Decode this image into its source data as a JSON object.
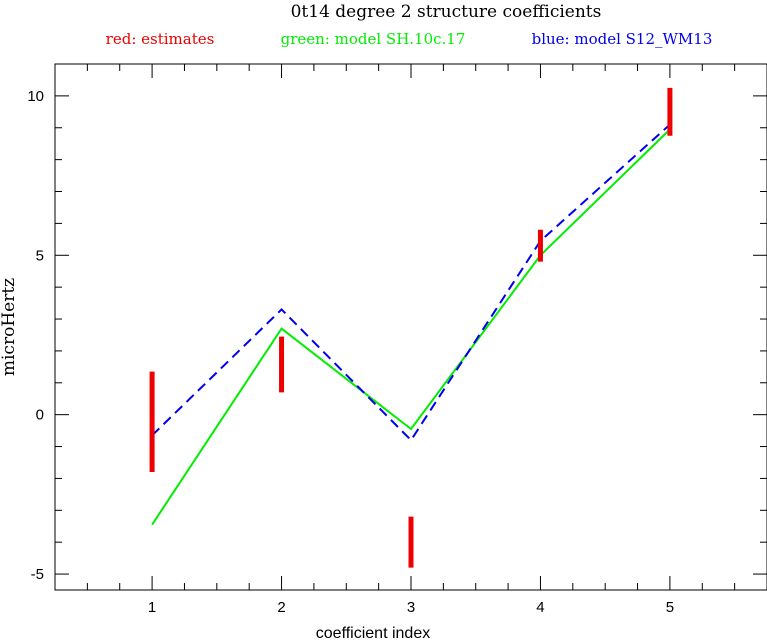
{
  "chart_data": {
    "type": "line",
    "title": "0t14 degree 2 structure coefficients",
    "legend": [
      {
        "label": "red: estimates",
        "color": "#ee0000"
      },
      {
        "label": "green: model SH.10c.17",
        "color": "#00ee00"
      },
      {
        "label": "blue: model S12_WM13",
        "color": "#0000ee"
      }
    ],
    "xlabel": "coefficient index",
    "ylabel": "microHertz",
    "xlim": [
      0.25,
      5.75
    ],
    "ylim": [
      -5.5,
      11
    ],
    "x_ticks": [
      1,
      2,
      3,
      4,
      5
    ],
    "x_tick_labels": [
      "1",
      "2",
      "3",
      "4",
      "5"
    ],
    "y_ticks": [
      -5,
      0,
      5,
      10
    ],
    "y_tick_labels": [
      "-5",
      "0",
      "5",
      "10"
    ],
    "series": [
      {
        "name": "estimates",
        "style": "error-bars",
        "color": "#ee0000",
        "x": [
          1,
          2,
          3,
          4,
          5
        ],
        "low": [
          -1.8,
          0.7,
          -4.8,
          4.8,
          8.75
        ],
        "high": [
          1.35,
          2.45,
          -3.2,
          5.8,
          10.25
        ]
      },
      {
        "name": "model SH.10c.17",
        "style": "solid",
        "color": "#00ee00",
        "x": [
          1,
          2,
          3,
          4,
          5
        ],
        "y": [
          -3.45,
          2.7,
          -0.45,
          5.0,
          8.95
        ]
      },
      {
        "name": "model S12_WM13",
        "style": "dashed",
        "color": "#0000ee",
        "x": [
          1,
          2,
          3,
          4,
          5
        ],
        "y": [
          -0.65,
          3.3,
          -0.8,
          5.45,
          9.1
        ]
      }
    ]
  }
}
